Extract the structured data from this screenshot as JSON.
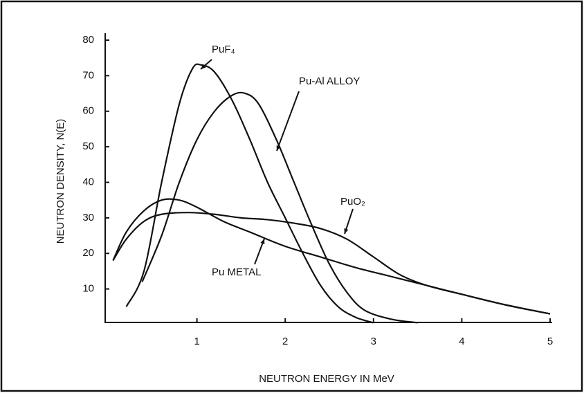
{
  "chart_data": {
    "type": "line",
    "xlabel": "NEUTRON ENERGY IN MeV",
    "ylabel": "NEUTRON DENSITY, N(E)",
    "xlim": [
      0,
      5
    ],
    "ylim": [
      0,
      80
    ],
    "xticks": [
      1,
      2,
      3,
      4,
      5
    ],
    "yticks": [
      10,
      20,
      30,
      40,
      50,
      60,
      70,
      80
    ],
    "grid": false,
    "series": [
      {
        "name": "PuF₄",
        "color": "#111111",
        "x": [
          0.2,
          0.4,
          0.6,
          0.8,
          0.95,
          1.05,
          1.2,
          1.4,
          1.6,
          1.8,
          2.0,
          2.2,
          2.4,
          2.6,
          2.8,
          3.0
        ],
        "values": [
          5,
          15,
          40,
          62,
          72,
          73,
          71,
          63,
          52,
          40,
          30,
          20,
          11,
          5,
          2,
          0.5
        ]
      },
      {
        "name": "Pu-Al ALLOY",
        "color": "#111111",
        "x": [
          0.38,
          0.6,
          0.8,
          1.0,
          1.2,
          1.4,
          1.55,
          1.7,
          1.9,
          2.1,
          2.3,
          2.5,
          2.7,
          2.9,
          3.2,
          3.5
        ],
        "values": [
          12,
          25,
          40,
          52,
          60,
          64.5,
          65,
          62,
          52,
          40,
          28,
          17,
          9,
          4,
          1.5,
          0.5
        ]
      },
      {
        "name": "PuO₂",
        "color": "#111111",
        "x": [
          0.05,
          0.2,
          0.4,
          0.6,
          0.9,
          1.2,
          1.5,
          1.8,
          2.1,
          2.4,
          2.7,
          3.0,
          3.3,
          3.6,
          4.0,
          4.5,
          5.0
        ],
        "values": [
          18,
          24,
          29,
          31,
          31.5,
          31,
          30,
          29.5,
          28.5,
          27,
          24,
          19,
          14,
          11,
          8.5,
          5.5,
          3
        ]
      },
      {
        "name": "Pu METAL",
        "color": "#111111",
        "x": [
          0.05,
          0.2,
          0.4,
          0.6,
          0.8,
          1.0,
          1.3,
          1.6,
          2.0,
          2.4,
          2.8,
          3.2,
          3.6,
          4.0,
          4.5,
          5.0
        ],
        "values": [
          18,
          26,
          32,
          35,
          35,
          33,
          29,
          26,
          22,
          19,
          16,
          13.5,
          11,
          8.5,
          5.5,
          3
        ]
      }
    ]
  }
}
